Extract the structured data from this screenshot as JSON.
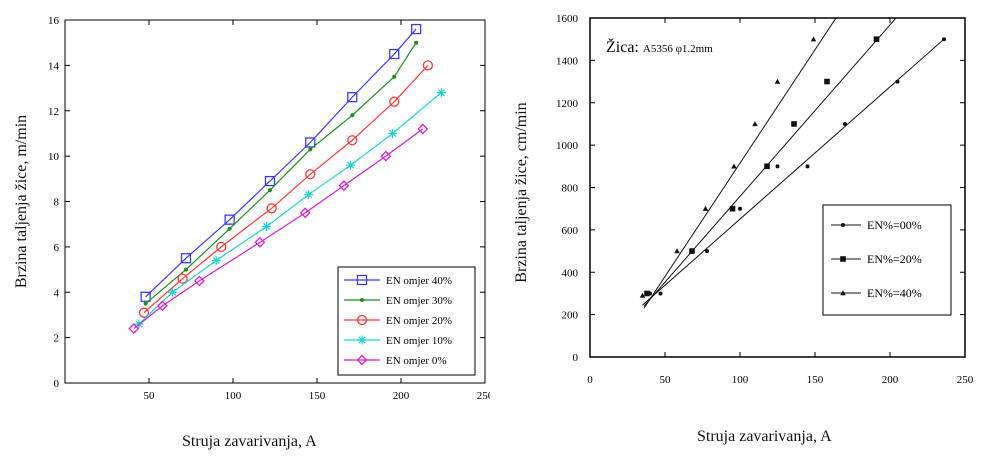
{
  "chart_data": [
    {
      "type": "line",
      "title": "",
      "xlabel": "Struja zavarivanja, A",
      "ylabel": "Brzina taljenja žice, m/min",
      "xlim": [
        0,
        250
      ],
      "ylim": [
        0,
        16
      ],
      "xticks": [
        "50",
        "100",
        "150",
        "200",
        "250"
      ],
      "yticks": [
        "0",
        "2",
        "4",
        "6",
        "8",
        "10",
        "12",
        "14",
        "16"
      ],
      "grid": false,
      "legend_position": "bottom-right",
      "series": [
        {
          "name": "EN omjer 40%",
          "color": "#3a3aff",
          "marker": "square",
          "x": [
            48,
            72,
            98,
            122,
            146,
            171,
            196,
            209
          ],
          "y": [
            3.8,
            5.5,
            7.2,
            8.9,
            10.6,
            12.6,
            14.5,
            15.6
          ]
        },
        {
          "name": "EN omjer 30%",
          "color": "#1e8c1e",
          "marker": "dot",
          "x": [
            48,
            72,
            98,
            122,
            146,
            171,
            196,
            209
          ],
          "y": [
            3.5,
            5.0,
            6.8,
            8.5,
            10.3,
            11.8,
            13.5,
            15.0
          ]
        },
        {
          "name": "EN omjer 20%",
          "color": "#ff3a3a",
          "marker": "circle",
          "x": [
            47,
            70,
            93,
            123,
            146,
            171,
            196,
            216
          ],
          "y": [
            3.1,
            4.6,
            6.0,
            7.7,
            9.2,
            10.7,
            12.4,
            14.0
          ]
        },
        {
          "name": "EN omjer 10%",
          "color": "#20d0d0",
          "marker": "star",
          "x": [
            44,
            64,
            90,
            120,
            145,
            170,
            195,
            224
          ],
          "y": [
            2.6,
            4.0,
            5.4,
            6.9,
            8.3,
            9.6,
            11.0,
            12.8
          ]
        },
        {
          "name": "EN omjer 0%",
          "color": "#d020d0",
          "marker": "diamond",
          "x": [
            41,
            58,
            80,
            116,
            143,
            166,
            191,
            213
          ],
          "y": [
            2.4,
            3.4,
            4.5,
            6.2,
            7.5,
            8.7,
            10.0,
            11.2
          ]
        }
      ]
    },
    {
      "type": "line",
      "title": "",
      "annotation": "Žica: A5356 φ1.2mm",
      "xlabel": "Struja zavarivanja, A",
      "ylabel": "Brzina taljenja žice, cm/min",
      "xlim": [
        0,
        250
      ],
      "ylim": [
        0,
        1600
      ],
      "xticks": [
        "0",
        "50",
        "100",
        "150",
        "200",
        "250"
      ],
      "yticks": [
        "0",
        "200",
        "400",
        "600",
        "800",
        "1000",
        "1200",
        "1400",
        "1600"
      ],
      "grid": false,
      "legend_position": "right",
      "series": [
        {
          "name": "EN%=00%",
          "color": "#111111",
          "marker": "dot",
          "x": [
            40,
            47,
            78,
            100,
            125,
            145,
            170,
            205,
            236
          ],
          "y": [
            300,
            300,
            500,
            700,
            900,
            900,
            1100,
            1300,
            1500
          ],
          "fit": [
            [
              35,
              245
            ],
            [
              236,
              1500
            ]
          ]
        },
        {
          "name": "EN%=20%",
          "color": "#111111",
          "marker": "square",
          "x": [
            38,
            68,
            95,
            118,
            136,
            158,
            191
          ],
          "y": [
            300,
            500,
            700,
            900,
            1100,
            1300,
            1500
          ],
          "fit": [
            [
              36,
              240
            ],
            [
              204,
              1600
            ]
          ]
        },
        {
          "name": "EN%=40%",
          "color": "#111111",
          "marker": "triangle",
          "x": [
            35,
            58,
            77,
            96,
            110,
            125,
            149
          ],
          "y": [
            290,
            500,
            700,
            900,
            1100,
            1300,
            1500
          ],
          "fit": [
            [
              36,
              230
            ],
            [
              164,
              1600
            ]
          ]
        }
      ]
    }
  ]
}
